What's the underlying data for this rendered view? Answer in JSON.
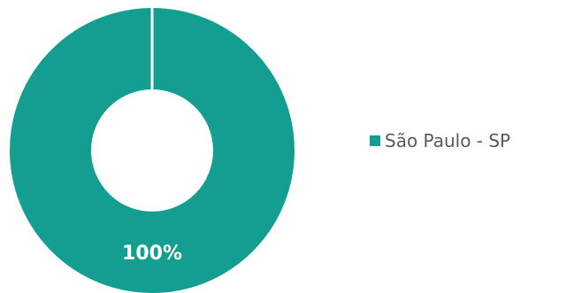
{
  "chart_data": {
    "type": "pie",
    "donut": true,
    "categories": [
      "São Paulo - SP"
    ],
    "values": [
      100
    ],
    "data_labels": [
      "100%"
    ],
    "colors": [
      "#139E91"
    ],
    "slice_border_color": "#ffffff",
    "legend_position": "right",
    "legend": [
      {
        "label": "São Paulo - SP",
        "color": "#139E91"
      }
    ]
  }
}
